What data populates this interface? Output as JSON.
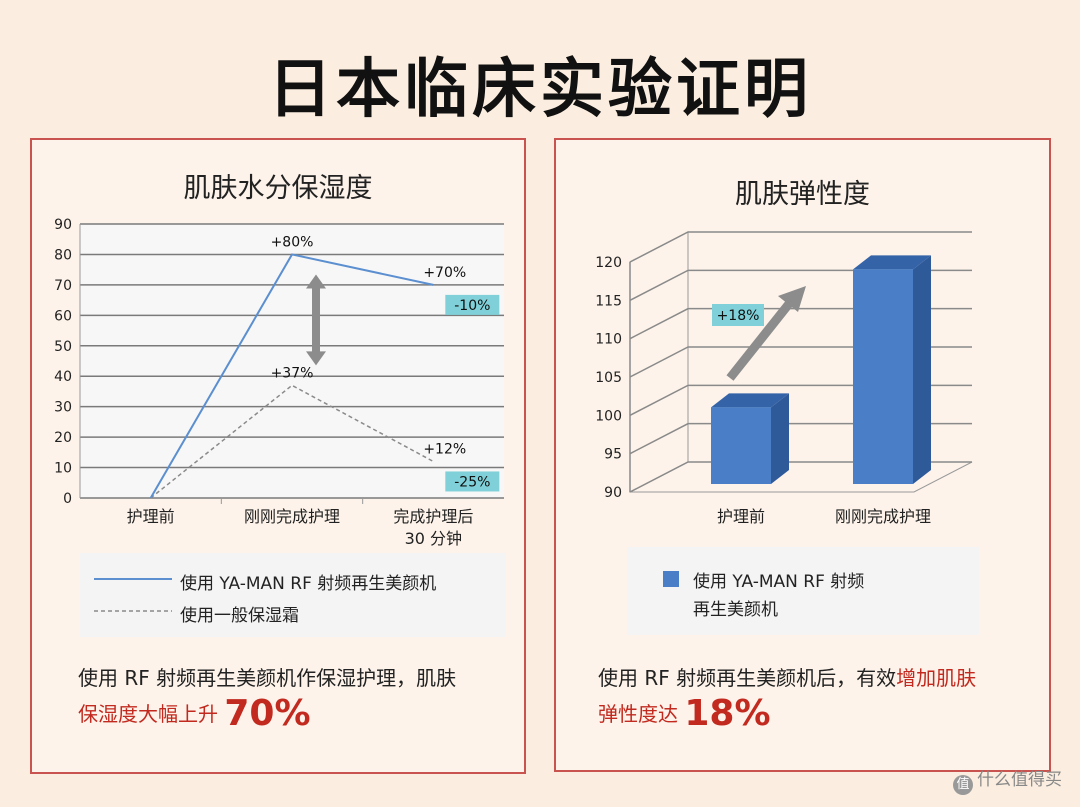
{
  "title": "日本临床实验证明",
  "left": {
    "panel_title": "肌肤水分保湿度",
    "legend_rf": "使用 YA-MAN RF 射频再生美颜机",
    "legend_general": "使用一般保湿霜",
    "caption_line1": "使用 RF 射频再生美颜机作保湿护理，肌肤",
    "caption_red": "保湿度大幅上升",
    "caption_big": "70%"
  },
  "right": {
    "panel_title": "肌肤弹性度",
    "legend_line1": "使用 YA-MAN RF 射频",
    "legend_line2": "再生美颜机",
    "caption_line1_a": "使用 RF 射频再生美颜机后，有效",
    "caption_line1_red": "增加肌肤",
    "caption_red": "弹性度达",
    "caption_big": "18%"
  },
  "watermark": "什么值得买",
  "chart_data": [
    {
      "type": "line",
      "title": "肌肤水分保湿度",
      "categories": [
        "护理前",
        "刚刚完成护理",
        "完成护理后\n30 分钟"
      ],
      "series": [
        {
          "name": "使用 YA-MAN RF 射频再生美颜机",
          "values": [
            0,
            80,
            70
          ],
          "color": "#5b8fd0",
          "labels": [
            "",
            "+80%",
            "+70%"
          ]
        },
        {
          "name": "使用一般保湿霜",
          "values": [
            0,
            37,
            12
          ],
          "color": "#8a8a8a",
          "labels": [
            "",
            "+37%",
            "+12%"
          ]
        }
      ],
      "annotations": [
        "-10%",
        "-25%"
      ],
      "ylim": [
        0,
        90
      ],
      "yticks": [
        0,
        10,
        20,
        30,
        40,
        50,
        60,
        70,
        80,
        90
      ],
      "grid": true
    },
    {
      "type": "bar",
      "title": "肌肤弹性度",
      "categories": [
        "护理前",
        "刚刚完成护理"
      ],
      "series": [
        {
          "name": "使用 YA-MAN RF 射频再生美颜机",
          "values": [
            100,
            118
          ],
          "color": "#4a7fc8"
        }
      ],
      "annotations": [
        "+18%"
      ],
      "ylim": [
        90,
        120
      ],
      "yticks": [
        90,
        95,
        100,
        105,
        110,
        115,
        120
      ],
      "grid": true
    }
  ]
}
